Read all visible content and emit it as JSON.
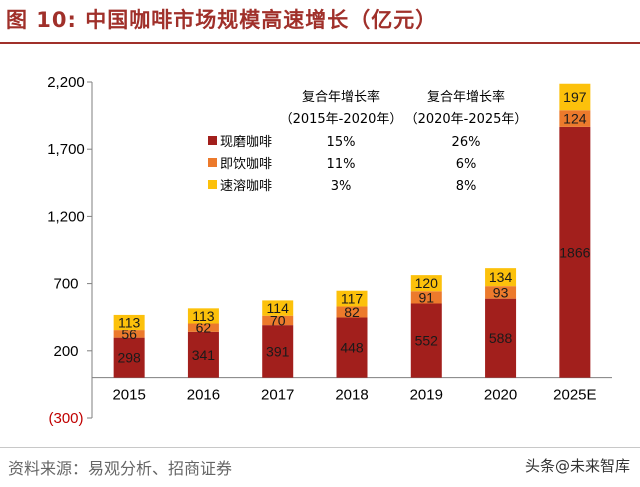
{
  "header": {
    "title": "图 10:  中国咖啡市场规模高速增长（亿元）"
  },
  "footer": {
    "source": "资料来源：易观分析、招商证券",
    "watermark": "头条@未来智库"
  },
  "chart_data": {
    "type": "bar",
    "stacked": true,
    "categories": [
      "2015",
      "2016",
      "2017",
      "2018",
      "2019",
      "2020",
      "2025E"
    ],
    "series": [
      {
        "name": "现磨咖啡",
        "values": [
          298,
          341,
          391,
          448,
          552,
          588,
          1866
        ],
        "color": "#a21f1c"
      },
      {
        "name": "即饮咖啡",
        "values": [
          56,
          62,
          70,
          82,
          91,
          93,
          124
        ],
        "color": "#ec7a2c"
      },
      {
        "name": "速溶咖啡",
        "values": [
          113,
          113,
          114,
          117,
          120,
          134,
          197
        ],
        "color": "#fcc10b"
      }
    ],
    "ylim": [
      -300,
      2200
    ],
    "yticks": [
      -300,
      200,
      700,
      1200,
      1700,
      2200
    ],
    "ytick_labels": [
      "(300)",
      "200",
      "700",
      "1,200",
      "1,700",
      "2,200"
    ],
    "grid": false,
    "legend": {
      "position": "top-center",
      "header": [
        "复合年增长率",
        "复合年增长率"
      ],
      "subheader": [
        "（2015年-2020年）",
        "（2020年-2025年）"
      ],
      "rows": [
        {
          "name": "现磨咖啡",
          "cagr_2015_2020": "15%",
          "cagr_2020_2025": "26%"
        },
        {
          "name": "即饮咖啡",
          "cagr_2015_2020": "11%",
          "cagr_2020_2025": "6%"
        },
        {
          "name": "速溶咖啡",
          "cagr_2015_2020": "3%",
          "cagr_2020_2025": "8%"
        }
      ]
    }
  }
}
